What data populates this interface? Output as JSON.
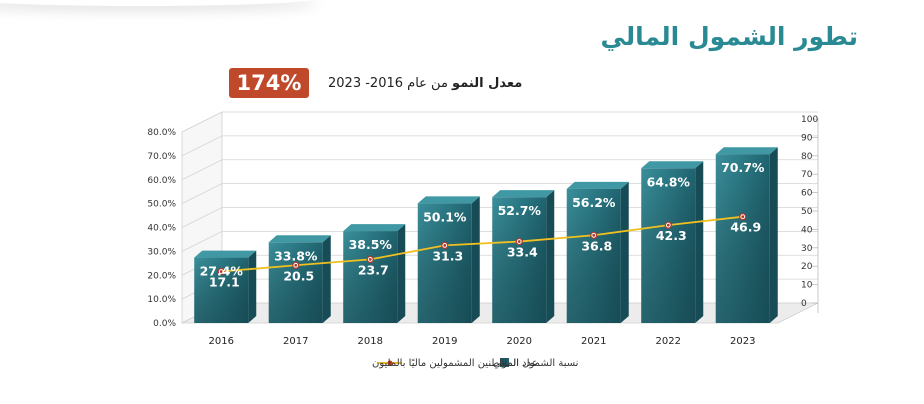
{
  "title": "تطور الشمول المالي",
  "growth": {
    "label_bold": "معدل النمو",
    "label_rest": " من عام 2016- 2023",
    "value": "174%"
  },
  "chart_data": {
    "type": "bar",
    "categories": [
      "2016",
      "2017",
      "2018",
      "2019",
      "2020",
      "2021",
      "2022",
      "2023"
    ],
    "series": [
      {
        "name": "نسبة الشمول المالي",
        "type": "bar",
        "axis": "left",
        "values": [
          27.4,
          33.8,
          38.5,
          50.1,
          52.7,
          56.2,
          64.8,
          70.7
        ],
        "labels": [
          "27.4%",
          "33.8%",
          "38.5%",
          "50.1%",
          "52.7%",
          "56.2%",
          "64.8%",
          "70.7%"
        ]
      },
      {
        "name": "عدد المواطنين المشمولين ماليًا  بالمليون",
        "type": "line",
        "axis": "right",
        "values": [
          17.1,
          20.5,
          23.7,
          31.3,
          33.4,
          36.8,
          42.3,
          46.9
        ],
        "labels": [
          "17.1",
          "20.5",
          "23.7",
          "31.3",
          "33.4",
          "36.8",
          "42.3",
          "46.9"
        ]
      }
    ],
    "y_left": {
      "min": 0,
      "max": 80,
      "step": 10,
      "tick_labels": [
        "0.0%",
        "10.0%",
        "20.0%",
        "30.0%",
        "40.0%",
        "50.0%",
        "60.0%",
        "70.0%",
        "80.0%"
      ]
    },
    "y_right": {
      "min": 0,
      "max": 100,
      "step": 10,
      "tick_labels": [
        "0",
        "10",
        "20",
        "30",
        "40",
        "50",
        "60",
        "70",
        "80",
        "90",
        "100"
      ]
    },
    "grid": true,
    "legend_position": "bottom",
    "colors": {
      "bar": "#2e7f8c",
      "bar_dark": "#174c56",
      "bar_top": "#3f98a4",
      "line": "#f0c020",
      "marker": "#b23a2a"
    }
  }
}
